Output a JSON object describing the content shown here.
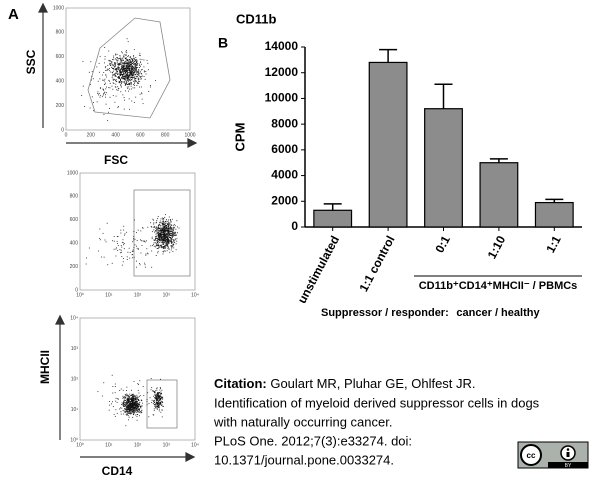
{
  "panel_a": {
    "label": "A",
    "plots": [
      {
        "x_label": "FSC",
        "y_label": "SSC",
        "xticks": [
          "0",
          "200",
          "400",
          "600",
          "800",
          "1000"
        ],
        "yticks": [
          "0",
          "200",
          "400",
          "600",
          "800",
          "1000"
        ]
      },
      {
        "xticks": [
          "10⁰",
          "10¹",
          "10²",
          "10³",
          "10⁴"
        ],
        "yticks": [
          "0",
          "200",
          "400",
          "600",
          "800",
          "1000"
        ]
      },
      {
        "x_label": "CD14",
        "y_label": "MHCII",
        "xticks": [
          "10⁰",
          "10¹",
          "10²",
          "10³",
          "10⁴"
        ],
        "yticks": [
          "10⁰",
          "10¹",
          "10²",
          "10³",
          "10⁴"
        ]
      }
    ]
  },
  "chart_data": {
    "type": "bar",
    "panel_label": "B",
    "title": "CD11b",
    "y_label": "CPM",
    "categories": [
      "unstimulated",
      "1:1 control",
      "0:1",
      "1:10",
      "1:1"
    ],
    "values": [
      1300,
      12800,
      9200,
      5000,
      1900
    ],
    "errors": [
      500,
      1000,
      1900,
      300,
      250
    ],
    "color": "#8c8c8c",
    "ylim": [
      0,
      14000
    ],
    "yticks": [
      0,
      2000,
      4000,
      6000,
      8000,
      10000,
      12000,
      14000
    ],
    "group_label": "CD11b⁺CD14⁺MHCII⁻ / PBMCs",
    "row_label": "Suppressor / responder:",
    "group_row_label": "cancer / healthy"
  },
  "citation": {
    "label": "Citation:",
    "lines": [
      "Goulart MR, Pluhar GE, Ohlfest JR.",
      "Identification of myeloid derived suppressor cells in dogs",
      "with naturally occurring cancer.",
      "PLoS One. 2012;7(3):e33274. doi:",
      "10.1371/journal.pone.0033274."
    ]
  },
  "license": "BY"
}
